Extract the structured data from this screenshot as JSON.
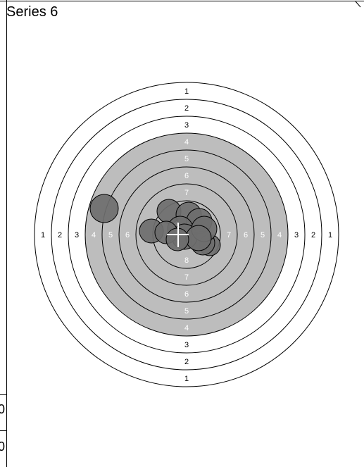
{
  "series": {
    "title": "Series 6"
  },
  "side_rows": [
    "0",
    "0"
  ],
  "target": {
    "ring_numbers_top": [
      "1",
      "2",
      "3",
      "4",
      "5",
      "6",
      "7"
    ],
    "ring_numbers_left": [
      "1",
      "2",
      "3",
      "4",
      "5",
      "6"
    ],
    "ring_numbers_right": [
      "7",
      "6",
      "5",
      "4",
      "3",
      "2",
      "1"
    ],
    "ring_numbers_bottom": [
      "8",
      "7",
      "6",
      "5",
      "4",
      "3",
      "2",
      "1"
    ],
    "colors": {
      "black_zone": "#bdbdbd",
      "shot_fill": "#6e6e6e",
      "line": "#000000",
      "light_text": "#ffffff"
    }
  }
}
